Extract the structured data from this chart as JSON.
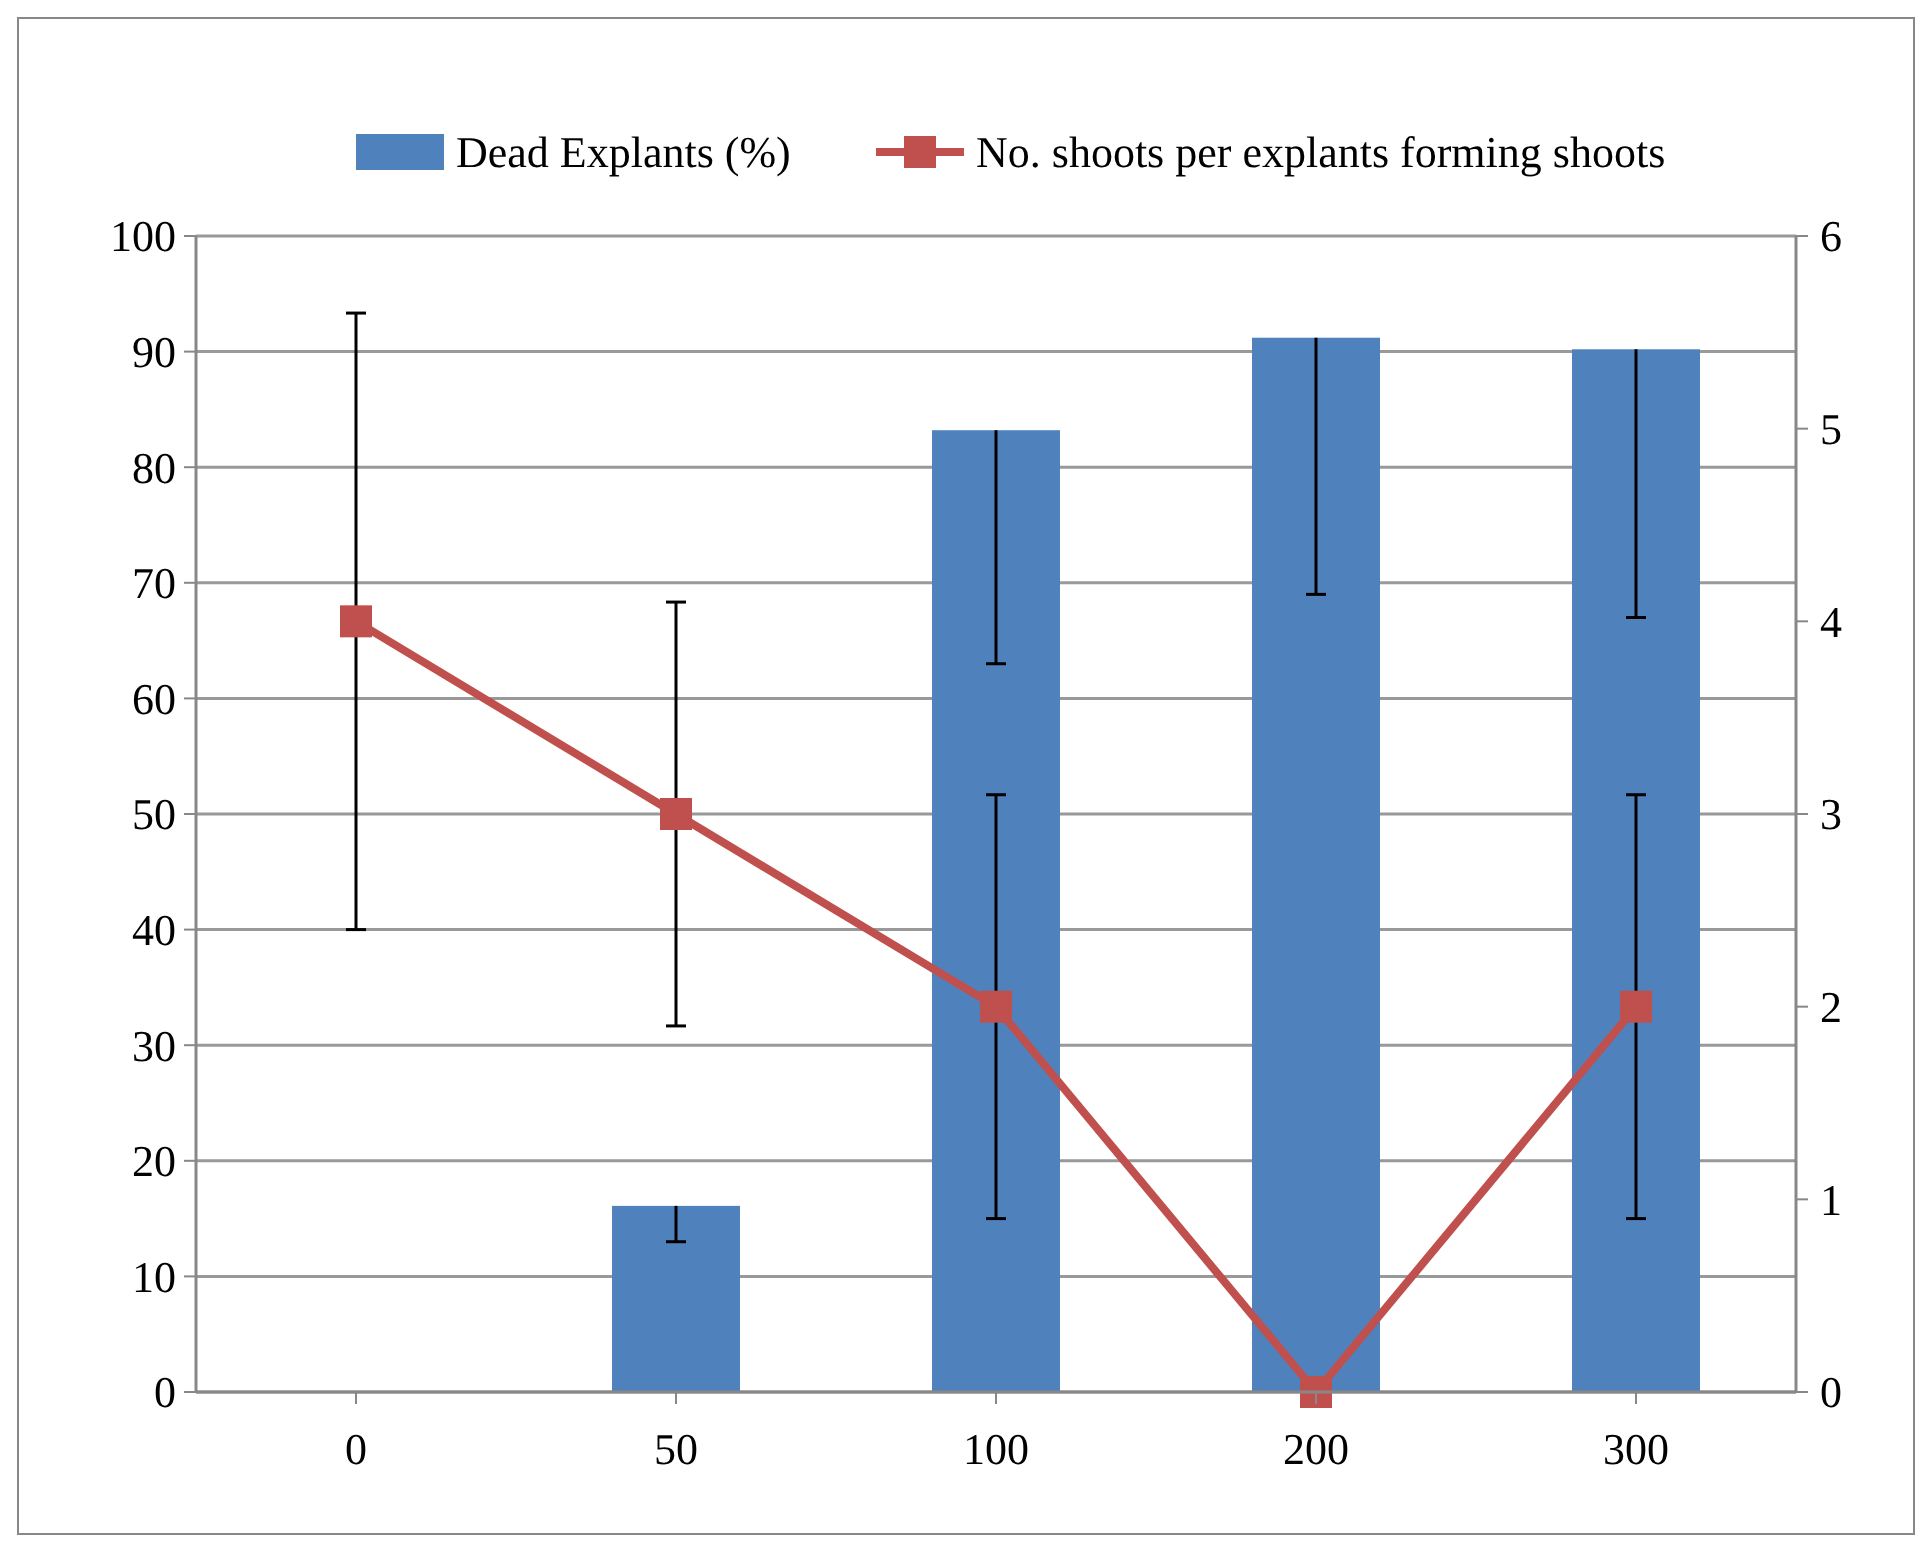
{
  "chart_data": {
    "type": "bar",
    "categories": [
      "0",
      "50",
      "100",
      "200",
      "300"
    ],
    "series": [
      {
        "name": "Dead Explants (%)",
        "color": "#4f81bd",
        "values": [
          0,
          16.1,
          83.2,
          91.2,
          90.2
        ],
        "errors": [
          null,
          [
            13,
            16.1
          ],
          [
            63,
            83.2
          ],
          [
            69,
            91.2
          ],
          [
            67,
            90.2
          ]
        ]
      },
      {
        "name": "No. shoots per explants forming shoots",
        "type": "line",
        "axis": "y2",
        "color": "#c0504d",
        "values": [
          4,
          3,
          2,
          0,
          2
        ],
        "errors": [
          [
            2.4,
            5.6
          ],
          [
            1.9,
            4.1
          ],
          [
            0.9,
            3.1
          ],
          null,
          [
            0.9,
            3.1
          ]
        ]
      }
    ],
    "ylim": [
      0,
      100
    ],
    "yticks": [
      0,
      10,
      20,
      30,
      40,
      50,
      60,
      70,
      80,
      90,
      100
    ],
    "y2lim": [
      0,
      6
    ],
    "y2ticks": [
      0,
      1,
      2,
      3,
      4,
      5,
      6
    ],
    "grid": "y",
    "legend": "top",
    "marker": "square",
    "line_style": "solid"
  }
}
